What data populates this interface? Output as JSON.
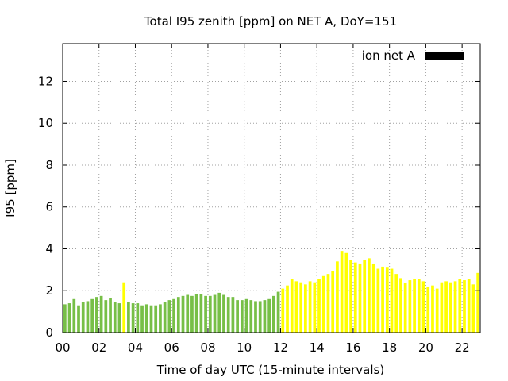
{
  "chart_data": {
    "type": "bar",
    "title": "Total I95 zenith [ppm] on NET A, DoY=151",
    "xlabel": "Time of day UTC (15-minute intervals)",
    "ylabel": "I95 [ppm]",
    "xlim": [
      0,
      22.75
    ],
    "ylim": [
      0,
      13.8
    ],
    "x_step_hours": 0.25,
    "x_ticks": [
      0,
      2,
      4,
      6,
      8,
      10,
      12,
      14,
      16,
      18,
      20,
      22
    ],
    "x_tick_labels": [
      "00",
      "02",
      "04",
      "06",
      "08",
      "10",
      "12",
      "14",
      "16",
      "18",
      "20",
      "22"
    ],
    "y_ticks": [
      0,
      2,
      4,
      6,
      8,
      10,
      12
    ],
    "y_tick_labels": [
      "0",
      "2",
      "4",
      "6",
      "8",
      "10",
      "12"
    ],
    "grid": true,
    "legend": {
      "label": "ion net A",
      "color": "#000000",
      "position": "top-right"
    },
    "colors": {
      "green": "#77bf47",
      "yellow": "#ffff00"
    },
    "series": [
      {
        "x": [
          0.0,
          0.25,
          0.5,
          0.75,
          1.0,
          1.25,
          1.5,
          1.75,
          2.0,
          2.25,
          2.5,
          2.75,
          3.0,
          3.25,
          3.5,
          3.75,
          4.0,
          4.25,
          4.5,
          4.75,
          5.0,
          5.25,
          5.5,
          5.75,
          6.0,
          6.25,
          6.5,
          6.75,
          7.0,
          7.25,
          7.5,
          7.75,
          8.0,
          8.25,
          8.5,
          8.75,
          9.0,
          9.25,
          9.5,
          9.75,
          10.0,
          10.25,
          10.5,
          10.75,
          11.0,
          11.25,
          11.5,
          11.75,
          12.0,
          12.25,
          12.5,
          12.75,
          13.0,
          13.25,
          13.5,
          13.75,
          14.0,
          14.25,
          14.5,
          14.75,
          15.0,
          15.25,
          15.5,
          15.75,
          16.0,
          16.25,
          16.5,
          16.75,
          17.0,
          17.25,
          17.5,
          17.75,
          18.0,
          18.25,
          18.5,
          18.75,
          19.0,
          19.25,
          19.5,
          19.75,
          20.0,
          20.25,
          20.5,
          20.75,
          21.0,
          21.25,
          21.5,
          21.75,
          22.0,
          22.25,
          22.5,
          22.75
        ],
        "values": [
          1.35,
          1.4,
          1.6,
          1.3,
          1.45,
          1.5,
          1.6,
          1.7,
          1.75,
          1.55,
          1.65,
          1.45,
          1.4,
          2.4,
          1.45,
          1.4,
          1.4,
          1.3,
          1.35,
          1.3,
          1.3,
          1.35,
          1.45,
          1.55,
          1.6,
          1.7,
          1.75,
          1.8,
          1.75,
          1.85,
          1.85,
          1.75,
          1.75,
          1.8,
          1.9,
          1.8,
          1.7,
          1.7,
          1.55,
          1.55,
          1.6,
          1.55,
          1.5,
          1.5,
          1.55,
          1.6,
          1.75,
          1.95,
          2.1,
          2.25,
          2.55,
          2.45,
          2.4,
          2.3,
          2.45,
          2.4,
          2.55,
          2.7,
          2.8,
          2.95,
          3.4,
          3.9,
          3.8,
          3.45,
          3.35,
          3.3,
          3.45,
          3.55,
          3.3,
          3.05,
          3.15,
          3.1,
          3.05,
          2.8,
          2.6,
          2.35,
          2.5,
          2.55,
          2.55,
          2.45,
          2.2,
          2.25,
          2.1,
          2.4,
          2.45,
          2.4,
          2.45,
          2.55,
          2.5,
          2.55,
          2.3,
          2.85
        ],
        "colors": [
          "green",
          "green",
          "green",
          "green",
          "green",
          "green",
          "green",
          "green",
          "green",
          "green",
          "green",
          "green",
          "green",
          "yellow",
          "green",
          "green",
          "green",
          "green",
          "green",
          "green",
          "green",
          "green",
          "green",
          "green",
          "green",
          "green",
          "green",
          "green",
          "green",
          "green",
          "green",
          "green",
          "green",
          "green",
          "green",
          "green",
          "green",
          "green",
          "green",
          "green",
          "green",
          "green",
          "green",
          "green",
          "green",
          "green",
          "green",
          "green",
          "yellow",
          "yellow",
          "yellow",
          "yellow",
          "yellow",
          "yellow",
          "yellow",
          "yellow",
          "yellow",
          "yellow",
          "yellow",
          "yellow",
          "yellow",
          "yellow",
          "yellow",
          "yellow",
          "yellow",
          "yellow",
          "yellow",
          "yellow",
          "yellow",
          "yellow",
          "yellow",
          "yellow",
          "yellow",
          "yellow",
          "yellow",
          "yellow",
          "yellow",
          "yellow",
          "yellow",
          "yellow",
          "yellow",
          "yellow",
          "yellow",
          "yellow",
          "yellow",
          "yellow",
          "yellow",
          "yellow",
          "yellow",
          "yellow",
          "yellow",
          "yellow"
        ]
      }
    ]
  }
}
